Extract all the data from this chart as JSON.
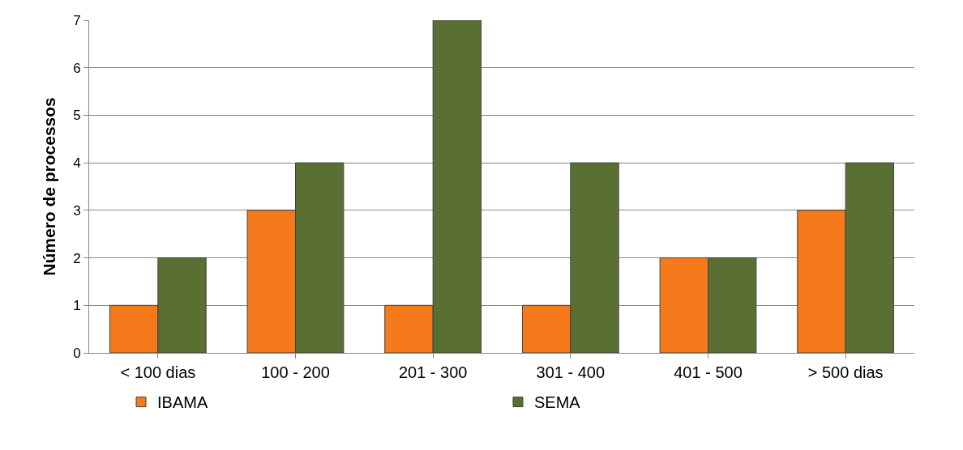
{
  "chart_data": {
    "type": "bar",
    "ylabel": "Número de processos",
    "categories": [
      "< 100 dias",
      "100 - 200",
      "201 - 300",
      "301 - 400",
      "401 - 500",
      "> 500 dias"
    ],
    "series": [
      {
        "name": "IBAMA",
        "color": "#f47a1c",
        "values": [
          1,
          3,
          1,
          1,
          2,
          3
        ]
      },
      {
        "name": "SEMA",
        "color": "#5a7032",
        "values": [
          2,
          4,
          7,
          4,
          2,
          4
        ]
      }
    ],
    "ylim": [
      0,
      7
    ],
    "yticks": [
      0,
      1,
      2,
      3,
      4,
      5,
      6,
      7
    ],
    "grid": "y",
    "legend": "bottom"
  }
}
